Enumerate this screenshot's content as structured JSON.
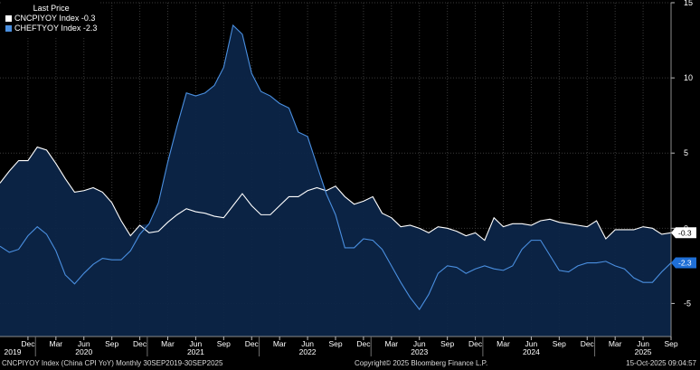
{
  "legend": {
    "title": "Last Price",
    "items": [
      {
        "label": "CNCPIYOY Index -0.3",
        "color": "#ffffff"
      },
      {
        "label": "CHEFTYOY Index -2.3",
        "color": "#4a8fe0"
      }
    ]
  },
  "footer": {
    "left": "CNCPIYOY Index (China CPI YoY) Monthly 30SEP2019-30SEP2025",
    "center": "Copyright© 2025 Bloomberg Finance L.P.",
    "right": "15-Oct-2025 09:04:57"
  },
  "chart_data": {
    "type": "line",
    "ylim": [
      -7.2,
      15
    ],
    "yticks": [
      -5,
      0,
      5,
      10,
      15
    ],
    "x": [
      "2019-09",
      "2019-10",
      "2019-11",
      "2019-12",
      "2020-01",
      "2020-02",
      "2020-03",
      "2020-04",
      "2020-05",
      "2020-06",
      "2020-07",
      "2020-08",
      "2020-09",
      "2020-10",
      "2020-11",
      "2020-12",
      "2021-01",
      "2021-02",
      "2021-03",
      "2021-04",
      "2021-05",
      "2021-06",
      "2021-07",
      "2021-08",
      "2021-09",
      "2021-10",
      "2021-11",
      "2021-12",
      "2022-01",
      "2022-02",
      "2022-03",
      "2022-04",
      "2022-05",
      "2022-06",
      "2022-07",
      "2022-08",
      "2022-09",
      "2022-10",
      "2022-11",
      "2022-12",
      "2023-01",
      "2023-02",
      "2023-03",
      "2023-04",
      "2023-05",
      "2023-06",
      "2023-07",
      "2023-08",
      "2023-09",
      "2023-10",
      "2023-11",
      "2023-12",
      "2024-01",
      "2024-02",
      "2024-03",
      "2024-04",
      "2024-05",
      "2024-06",
      "2024-07",
      "2024-08",
      "2024-09",
      "2024-10",
      "2024-11",
      "2024-12",
      "2025-01",
      "2025-02",
      "2025-03",
      "2025-04",
      "2025-05",
      "2025-06",
      "2025-07",
      "2025-08",
      "2025-09"
    ],
    "x_ticks": [
      {
        "label": "Dec",
        "month": "2019-12"
      },
      {
        "label": "Mar",
        "month": "2020-03"
      },
      {
        "label": "Jun",
        "month": "2020-06"
      },
      {
        "label": "Sep",
        "month": "2020-09"
      },
      {
        "label": "Dec",
        "month": "2020-12"
      },
      {
        "label": "Mar",
        "month": "2021-03"
      },
      {
        "label": "Jun",
        "month": "2021-06"
      },
      {
        "label": "Sep",
        "month": "2021-09"
      },
      {
        "label": "Dec",
        "month": "2021-12"
      },
      {
        "label": "Mar",
        "month": "2022-03"
      },
      {
        "label": "Jun",
        "month": "2022-06"
      },
      {
        "label": "Sep",
        "month": "2022-09"
      },
      {
        "label": "Dec",
        "month": "2022-12"
      },
      {
        "label": "Mar",
        "month": "2023-03"
      },
      {
        "label": "Jun",
        "month": "2023-06"
      },
      {
        "label": "Sep",
        "month": "2023-09"
      },
      {
        "label": "Dec",
        "month": "2023-12"
      },
      {
        "label": "Mar",
        "month": "2024-03"
      },
      {
        "label": "Jun",
        "month": "2024-06"
      },
      {
        "label": "Sep",
        "month": "2024-09"
      },
      {
        "label": "Dec",
        "month": "2024-12"
      },
      {
        "label": "Mar",
        "month": "2025-03"
      },
      {
        "label": "Jun",
        "month": "2025-06"
      },
      {
        "label": "Sep",
        "month": "2025-09"
      }
    ],
    "year_labels": [
      {
        "label": "2019",
        "month": "2019-10"
      },
      {
        "label": "2020",
        "month": "2020-06"
      },
      {
        "label": "2021",
        "month": "2021-06"
      },
      {
        "label": "2022",
        "month": "2022-06"
      },
      {
        "label": "2023",
        "month": "2023-06"
      },
      {
        "label": "2024",
        "month": "2024-06"
      },
      {
        "label": "2025",
        "month": "2025-06"
      }
    ],
    "grid": true,
    "series": [
      {
        "name": "CNCPIYOY Index",
        "last_label": "-0.3",
        "color": "#ffffff",
        "values": [
          3.0,
          3.8,
          4.5,
          4.5,
          5.4,
          5.2,
          4.3,
          3.3,
          2.4,
          2.5,
          2.7,
          2.4,
          1.7,
          0.5,
          -0.5,
          0.2,
          -0.3,
          -0.2,
          0.4,
          0.9,
          1.3,
          1.1,
          1.0,
          0.8,
          0.7,
          1.5,
          2.3,
          1.5,
          0.9,
          0.9,
          1.5,
          2.1,
          2.1,
          2.5,
          2.7,
          2.5,
          2.8,
          2.1,
          1.6,
          1.8,
          2.1,
          1.0,
          0.7,
          0.1,
          0.2,
          0.0,
          -0.3,
          0.1,
          0.0,
          -0.2,
          -0.5,
          -0.3,
          -0.8,
          0.7,
          0.1,
          0.3,
          0.3,
          0.2,
          0.5,
          0.6,
          0.4,
          0.3,
          0.2,
          0.1,
          0.5,
          -0.7,
          -0.1,
          -0.1,
          -0.1,
          0.1,
          0.0,
          -0.4,
          -0.3
        ]
      },
      {
        "name": "CHEFTYOY Index",
        "last_label": "-2.3",
        "color": "#4a8fe0",
        "values": [
          -1.2,
          -1.6,
          -1.4,
          -0.5,
          0.1,
          -0.4,
          -1.5,
          -3.1,
          -3.7,
          -3.0,
          -2.4,
          -2.0,
          -2.1,
          -2.1,
          -1.5,
          -0.4,
          0.3,
          1.7,
          4.4,
          6.8,
          9.0,
          8.8,
          9.0,
          9.5,
          10.7,
          13.5,
          12.9,
          10.3,
          9.1,
          8.8,
          8.3,
          8.0,
          6.4,
          6.1,
          4.2,
          2.3,
          0.9,
          -1.3,
          -1.3,
          -0.7,
          -0.8,
          -1.4,
          -2.5,
          -3.6,
          -4.6,
          -5.4,
          -4.4,
          -3.0,
          -2.5,
          -2.6,
          -3.0,
          -2.7,
          -2.5,
          -2.7,
          -2.8,
          -2.5,
          -1.4,
          -0.8,
          -0.8,
          -1.8,
          -2.8,
          -2.9,
          -2.5,
          -2.3,
          -2.3,
          -2.2,
          -2.5,
          -2.7,
          -3.3,
          -3.6,
          -3.6,
          -2.9,
          -2.3
        ]
      }
    ]
  }
}
